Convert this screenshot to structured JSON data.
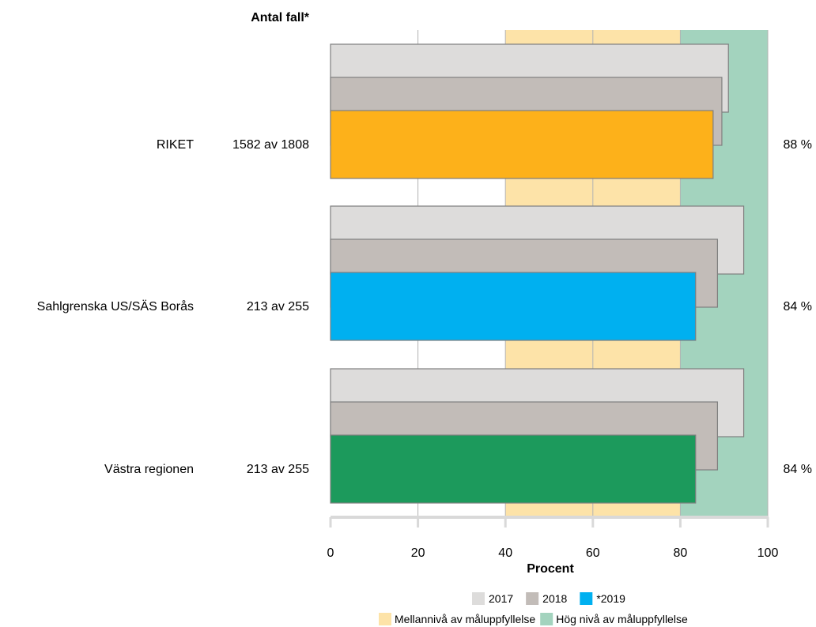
{
  "chart_data": {
    "type": "bar",
    "orientation": "horizontal",
    "count_header": "Antal fall*",
    "xlabel": "Procent",
    "xlim": [
      0,
      100
    ],
    "x_ticks": [
      "0",
      "20",
      "40",
      "60",
      "80",
      "100"
    ],
    "bands": [
      {
        "name": "Mellannivå av måluppfyllelse",
        "from": 40,
        "to": 80,
        "color": "#fde3a8"
      },
      {
        "name": "Hög nivå av måluppfyllelse",
        "from": 80,
        "to": 100,
        "color": "#a3d3be"
      }
    ],
    "categories": [
      {
        "name": "RIKET",
        "count": "1582 av 1808",
        "value_label": "88 %",
        "values": {
          "2017": 91,
          "2018": 89.5,
          "2019": 87.5
        },
        "color_2019": "#fdb11a"
      },
      {
        "name": "Sahlgrenska US/SÄS Borås",
        "count": "213 av 255",
        "value_label": "84 %",
        "values": {
          "2017": 94.5,
          "2018": 88.5,
          "2019": 83.5
        },
        "color_2019": "#00b0f0"
      },
      {
        "name": "Västra regionen",
        "count": "213 av 255",
        "value_label": "84 %",
        "values": {
          "2017": 94.5,
          "2018": 88.5,
          "2019": 83.5
        },
        "color_2019": "#1c9a5c"
      }
    ],
    "series_colors": {
      "2017": "#dddcdb",
      "2018": "#c2bcb8"
    },
    "legend_series": [
      {
        "name": "2017",
        "color": "#dddcdb"
      },
      {
        "name": "2018",
        "color": "#c2bcb8"
      },
      {
        "name": "*2019",
        "color": "#00b0f0"
      }
    ],
    "legend_position": "bottom",
    "grid": true
  }
}
